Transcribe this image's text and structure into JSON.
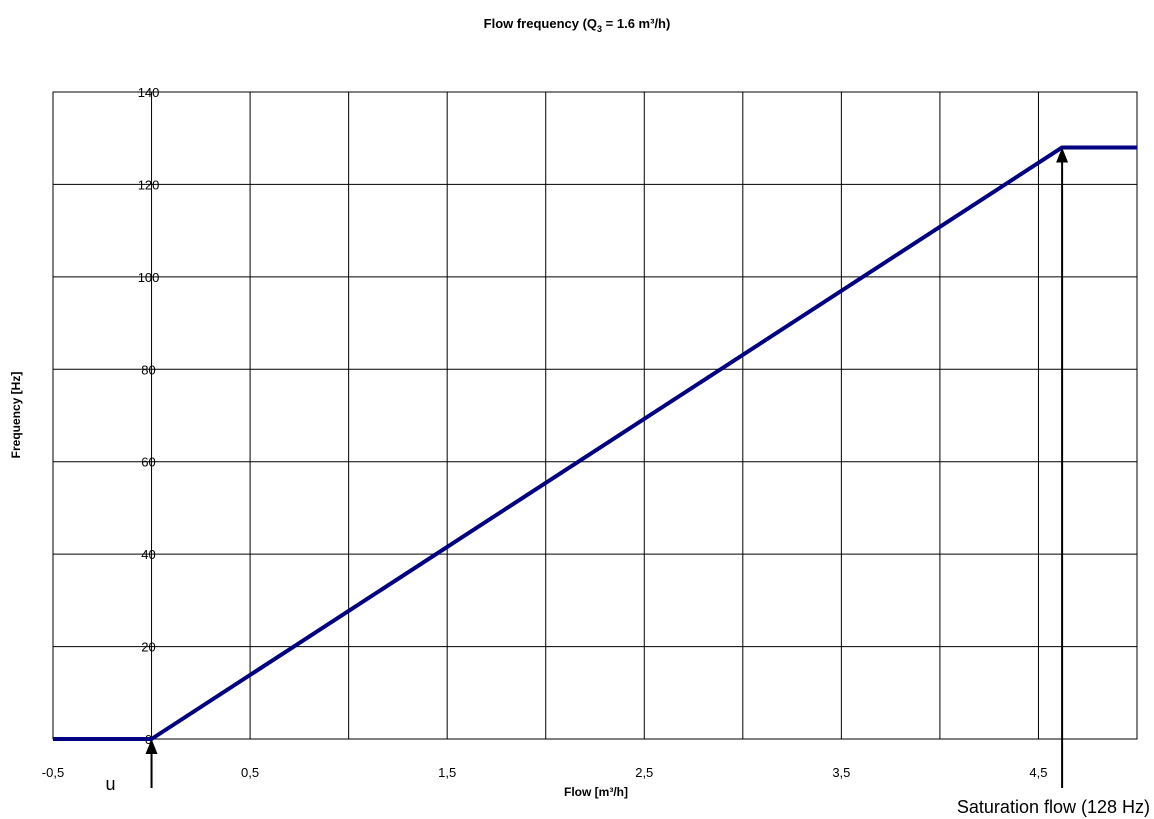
{
  "chart_data": {
    "type": "line",
    "title": {
      "prefix": "Flow frequency (Q",
      "subscript": "3",
      "suffix": " = 1.6 m³/h)"
    },
    "xlabel": "Flow [m³/h]",
    "ylabel": "Frequency [Hz]",
    "xlim": [
      -0.5,
      5.0
    ],
    "ylim": [
      0,
      140
    ],
    "x_ticks": [
      -0.5,
      0.5,
      1.5,
      2.5,
      3.5,
      4.5
    ],
    "x_tick_labels": [
      "-0,5",
      "0,5",
      "1,5",
      "2,5",
      "3,5",
      "4,5"
    ],
    "x_gridlines": [
      0.0,
      0.5,
      1.0,
      1.5,
      2.0,
      2.5,
      3.0,
      3.5,
      4.0,
      4.5,
      5.0
    ],
    "y_ticks": [
      0,
      20,
      40,
      60,
      80,
      100,
      120,
      140
    ],
    "y_tick_labels": [
      "0",
      "20",
      "40",
      "60",
      "80",
      "100",
      "120",
      "140"
    ],
    "grid": true,
    "series": [
      {
        "color": "#000080",
        "points": [
          [
            -0.5,
            0
          ],
          [
            0.0,
            0
          ],
          [
            4.62,
            128
          ],
          [
            5.0,
            128
          ]
        ]
      }
    ],
    "annotations": [
      {
        "text": "u",
        "x": 0.0,
        "y": 0,
        "arrow_up_to": 0
      },
      {
        "text": "Saturation flow (128 Hz)",
        "x": 4.62,
        "y": 128,
        "arrow_up_to": 128
      }
    ]
  }
}
